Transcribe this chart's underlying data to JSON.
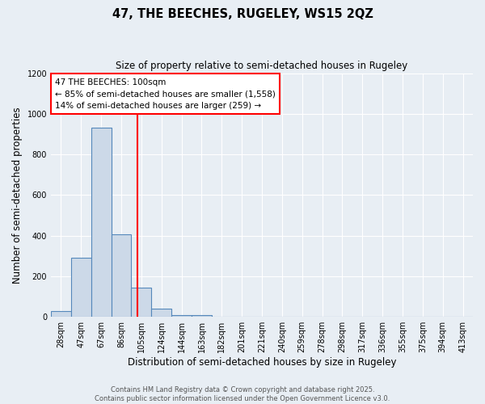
{
  "title1": "47, THE BEECHES, RUGELEY, WS15 2QZ",
  "title2": "Size of property relative to semi-detached houses in Rugeley",
  "xlabel": "Distribution of semi-detached houses by size in Rugeley",
  "ylabel": "Number of semi-detached properties",
  "bar_labels": [
    "28sqm",
    "47sqm",
    "67sqm",
    "86sqm",
    "105sqm",
    "124sqm",
    "144sqm",
    "163sqm",
    "182sqm",
    "201sqm",
    "221sqm",
    "240sqm",
    "259sqm",
    "278sqm",
    "298sqm",
    "317sqm",
    "336sqm",
    "355sqm",
    "375sqm",
    "394sqm",
    "413sqm"
  ],
  "bar_values": [
    28,
    292,
    930,
    405,
    145,
    40,
    10,
    10,
    0,
    0,
    0,
    0,
    0,
    0,
    0,
    0,
    0,
    0,
    0,
    0,
    0
  ],
  "bin_edges": [
    18.5,
    37.5,
    56.5,
    75.5,
    94.5,
    113.5,
    132.5,
    151.5,
    170.5,
    189.5,
    208.5,
    227.5,
    246.5,
    265.5,
    284.5,
    303.5,
    322.5,
    341.5,
    360.5,
    379.5,
    398.5,
    417.5
  ],
  "bar_color": "#ccd9e8",
  "bar_edge_color": "#5588bb",
  "property_line_x": 100,
  "property_line_color": "red",
  "annotation_line1": "47 THE BEECHES: 100sqm",
  "annotation_line2": "← 85% of semi-detached houses are smaller (1,558)",
  "annotation_line3": "14% of semi-detached houses are larger (259) →",
  "ylim": [
    0,
    1200
  ],
  "background_color": "#e8eef4",
  "grid_color": "#ffffff",
  "footer_text": "Contains HM Land Registry data © Crown copyright and database right 2025.\nContains public sector information licensed under the Open Government Licence v3.0."
}
